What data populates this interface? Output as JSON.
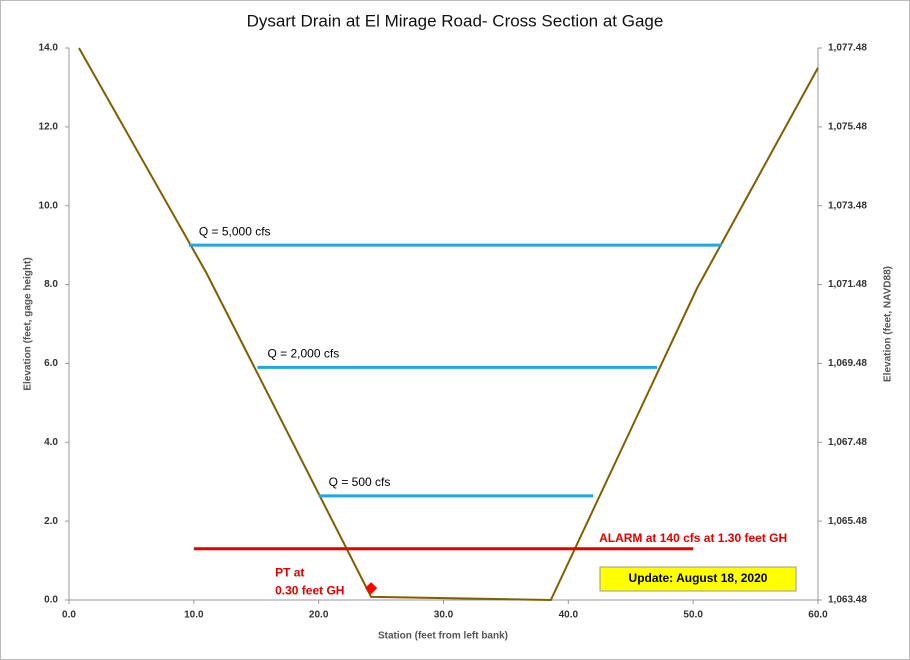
{
  "chart_data": {
    "type": "line",
    "title": "Dysart Drain at El Mirage Road- Cross Section at Gage",
    "xlabel": "Station (feet from left bank)",
    "ylabel": "Elevation (feet, gage height)",
    "y2label": "Elevation (feet, NAVD88)",
    "xlim": [
      0,
      60
    ],
    "xticks": [
      {
        "value": 0,
        "label": "0.0"
      },
      {
        "value": 10,
        "label": "10.0"
      },
      {
        "value": 20,
        "label": "20.0"
      },
      {
        "value": 30,
        "label": "30.0"
      },
      {
        "value": 40,
        "label": "40.0"
      },
      {
        "value": 50,
        "label": "50.0"
      },
      {
        "value": 60,
        "label": "60.0"
      }
    ],
    "ylim": [
      0,
      14
    ],
    "yticks": [
      {
        "value": 0,
        "label": "0.0"
      },
      {
        "value": 2,
        "label": "2.0"
      },
      {
        "value": 4,
        "label": "4.0"
      },
      {
        "value": 6,
        "label": "6.0"
      },
      {
        "value": 8,
        "label": "8.0"
      },
      {
        "value": 10,
        "label": "10.0"
      },
      {
        "value": 12,
        "label": "12.0"
      },
      {
        "value": 14,
        "label": "14.0"
      }
    ],
    "y2lim": [
      1063.48,
      1077.48
    ],
    "y2ticks": [
      {
        "value": 1063.48,
        "label": "1,063.48"
      },
      {
        "value": 1065.48,
        "label": "1,065.48"
      },
      {
        "value": 1067.48,
        "label": "1,067.48"
      },
      {
        "value": 1069.48,
        "label": "1,069.48"
      },
      {
        "value": 1071.48,
        "label": "1,071.48"
      },
      {
        "value": 1073.48,
        "label": "1,073.48"
      },
      {
        "value": 1075.48,
        "label": "1,075.48"
      },
      {
        "value": 1077.48,
        "label": "1,077.48"
      }
    ],
    "grid": false,
    "series": [
      {
        "color": "#7f6000",
        "x": [
          0.8,
          11,
          24.2,
          38.6,
          50.3,
          60
        ],
        "values": [
          14,
          8.3,
          0.08,
          0,
          7.9,
          13.5
        ]
      },
      {
        "name": "Q = 5,000  cfs",
        "color": "#1fa7e0",
        "x": [
          9.6,
          52.3
        ],
        "values": [
          9,
          9
        ]
      },
      {
        "name": "Q = 2,000  cfs",
        "color": "#1fa7e0",
        "x": [
          15.1,
          47.1
        ],
        "values": [
          5.9,
          5.9
        ]
      },
      {
        "name": "Q = 500  cfs",
        "color": "#1fa7e0",
        "x": [
          20,
          42
        ],
        "values": [
          2.64,
          2.64
        ]
      },
      {
        "name": "ALARM at 140  cfs at 1.30  feet GH",
        "color": "#e00000",
        "x": [
          10,
          50
        ],
        "values": [
          1.3,
          1.3
        ]
      },
      {
        "name": [
          "PT at",
          "0.30  feet GH"
        ],
        "color": "#ff0000",
        "marker": "diamond",
        "x": [
          24.2
        ],
        "values": [
          0.3
        ]
      }
    ],
    "annotations": [
      "Update: August 18, 2020"
    ]
  }
}
